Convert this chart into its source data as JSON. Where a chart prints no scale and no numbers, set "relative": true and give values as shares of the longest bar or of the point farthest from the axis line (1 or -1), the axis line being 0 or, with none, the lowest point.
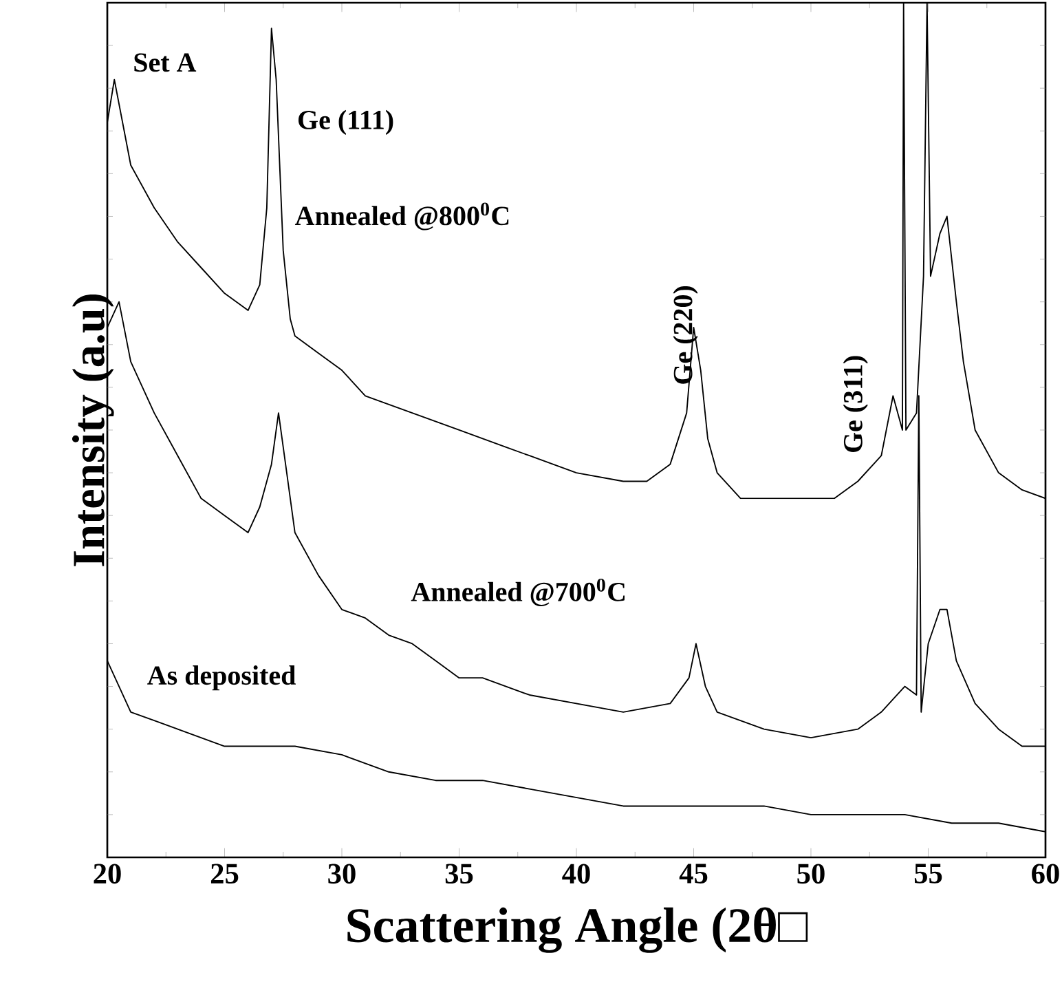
{
  "chart_data": {
    "type": "line",
    "relative": true,
    "xlabel": "Scattering Angle (2θ□",
    "ylabel": "Intensity (a.u)",
    "xlim": [
      20,
      60
    ],
    "xticks": [
      20,
      25,
      30,
      35,
      40,
      45,
      50,
      55,
      60
    ],
    "annotations": [
      "Set A",
      "Ge (111)",
      {
        "text": "Ge (220)",
        "x": 45.0,
        "y": 0.62
      },
      "Ge (311)"
    ],
    "series": [
      {
        "name": "Annealed @800$^{0}$C",
        "color": "#000000",
        "x": [
          20.0,
          20.3,
          21,
          22,
          23,
          24,
          25,
          26,
          26.5,
          26.8,
          27.0,
          27.2,
          27.5,
          27.8,
          28,
          29,
          30,
          31,
          32,
          33,
          35,
          37,
          38,
          40,
          42,
          43,
          44,
          44.7,
          45.0,
          45.3,
          45.6,
          46,
          47,
          48,
          49,
          50,
          51,
          52,
          53,
          53.5,
          53.9,
          53.95,
          54.05,
          54.5,
          54.8,
          54.95,
          55.1,
          55.5,
          55.8,
          56.2,
          56.5,
          57,
          58,
          59,
          60
        ],
        "values": [
          0.86,
          0.91,
          0.81,
          0.76,
          0.72,
          0.69,
          0.66,
          0.64,
          0.67,
          0.76,
          0.97,
          0.91,
          0.71,
          0.63,
          0.61,
          0.59,
          0.57,
          0.54,
          0.53,
          0.52,
          0.5,
          0.48,
          0.47,
          0.45,
          0.44,
          0.44,
          0.46,
          0.52,
          0.62,
          0.57,
          0.49,
          0.45,
          0.42,
          0.42,
          0.42,
          0.42,
          0.42,
          0.44,
          0.47,
          0.54,
          0.5,
          1.0,
          0.5,
          0.52,
          0.68,
          1.0,
          0.68,
          0.73,
          0.75,
          0.65,
          0.58,
          0.5,
          0.45,
          0.43,
          0.42
        ]
      },
      {
        "name": "Annealed @700$^{0}$C",
        "color": "#000000",
        "x": [
          20,
          20.5,
          21,
          22,
          23,
          24,
          25,
          26,
          26.5,
          27.0,
          27.3,
          27.6,
          28,
          29,
          30,
          31,
          32,
          33,
          34,
          35,
          36,
          38,
          40,
          42,
          44,
          44.8,
          45.1,
          45.5,
          46,
          48,
          50,
          52,
          53,
          54,
          54.5,
          54.6,
          54.7,
          55,
          55.5,
          55.8,
          56.2,
          57,
          58,
          59,
          60
        ],
        "values": [
          0.62,
          0.65,
          0.58,
          0.52,
          0.47,
          0.42,
          0.4,
          0.38,
          0.41,
          0.46,
          0.52,
          0.46,
          0.38,
          0.33,
          0.29,
          0.28,
          0.26,
          0.25,
          0.23,
          0.21,
          0.21,
          0.19,
          0.18,
          0.17,
          0.18,
          0.21,
          0.25,
          0.2,
          0.17,
          0.15,
          0.14,
          0.15,
          0.17,
          0.2,
          0.19,
          0.54,
          0.17,
          0.25,
          0.29,
          0.29,
          0.23,
          0.18,
          0.15,
          0.13,
          0.13
        ]
      },
      {
        "name": "As deposited",
        "color": "#000000",
        "x": [
          20,
          20.5,
          21,
          22,
          23,
          24,
          25,
          26,
          27,
          28,
          30,
          32,
          34,
          36,
          38,
          40,
          42,
          44,
          46,
          48,
          50,
          52,
          54,
          56,
          58,
          60
        ],
        "values": [
          0.23,
          0.2,
          0.17,
          0.16,
          0.15,
          0.14,
          0.13,
          0.13,
          0.13,
          0.13,
          0.12,
          0.1,
          0.09,
          0.09,
          0.08,
          0.07,
          0.06,
          0.06,
          0.06,
          0.06,
          0.05,
          0.05,
          0.05,
          0.04,
          0.04,
          0.03
        ]
      }
    ]
  }
}
